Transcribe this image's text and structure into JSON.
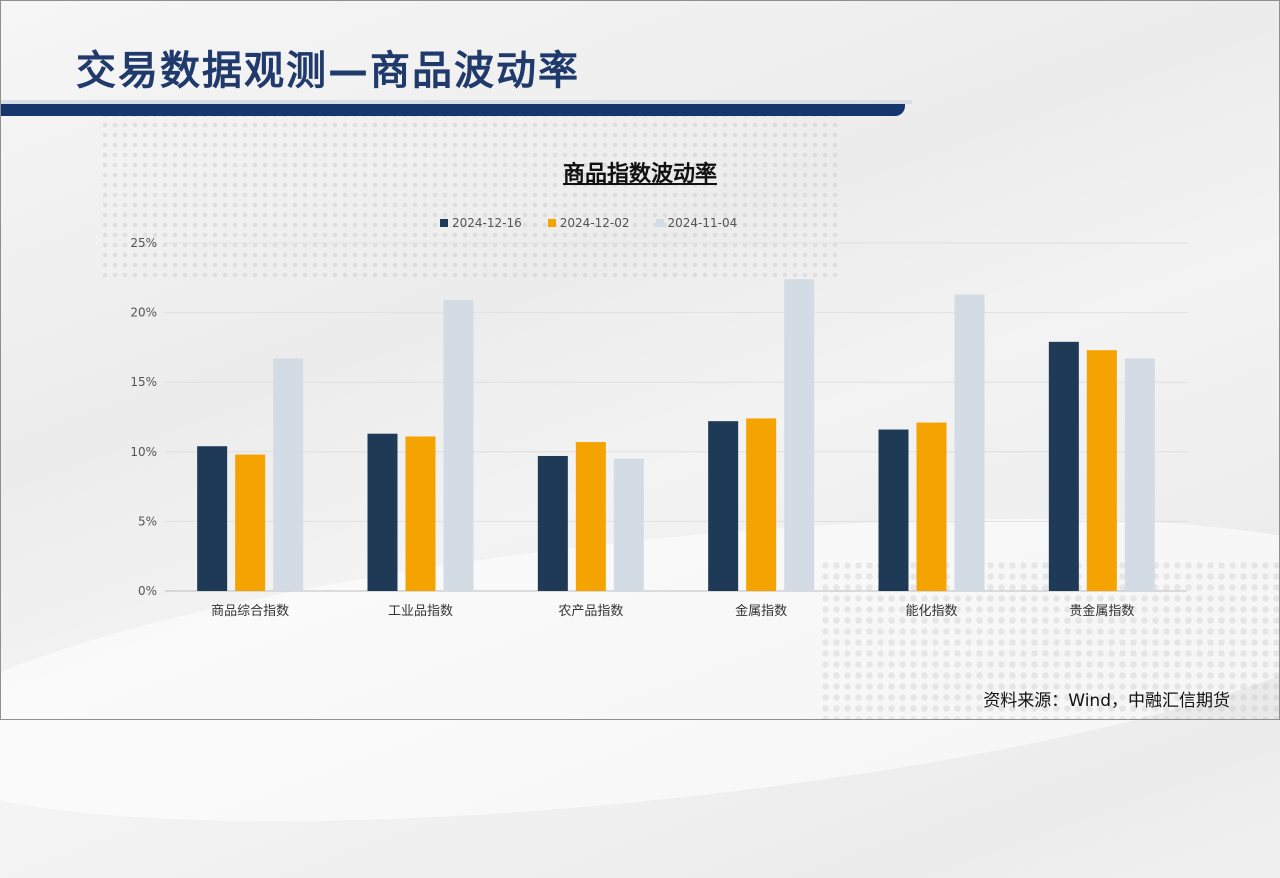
{
  "page_title": "交易数据观测—商品波动率",
  "source_note": "资料来源：Wind，中融汇信期货",
  "colors": {
    "title": "#1f3a6b",
    "accent_bar": "#16376d"
  },
  "chart_data": {
    "type": "bar",
    "title": "商品指数波动率",
    "categories": [
      "商品综合指数",
      "工业品指数",
      "农产品指数",
      "金属指数",
      "能化指数",
      "贵金属指数"
    ],
    "series": [
      {
        "name": "2024-12-16",
        "color": "#1f3a56",
        "values": [
          10.4,
          11.3,
          9.7,
          12.2,
          11.6,
          17.9
        ]
      },
      {
        "name": "2024-12-02",
        "color": "#f5a300",
        "values": [
          9.8,
          11.1,
          10.7,
          12.4,
          12.1,
          17.3
        ]
      },
      {
        "name": "2024-11-04",
        "color": "#d3dbe4",
        "values": [
          16.7,
          20.9,
          9.5,
          22.4,
          21.3,
          16.7
        ]
      }
    ],
    "yticks": [
      "0%",
      "5%",
      "10%",
      "15%",
      "20%",
      "25%"
    ],
    "ylim": [
      0,
      25
    ],
    "xlabel": "",
    "ylabel": "",
    "grid": true,
    "legend_position": "top"
  }
}
